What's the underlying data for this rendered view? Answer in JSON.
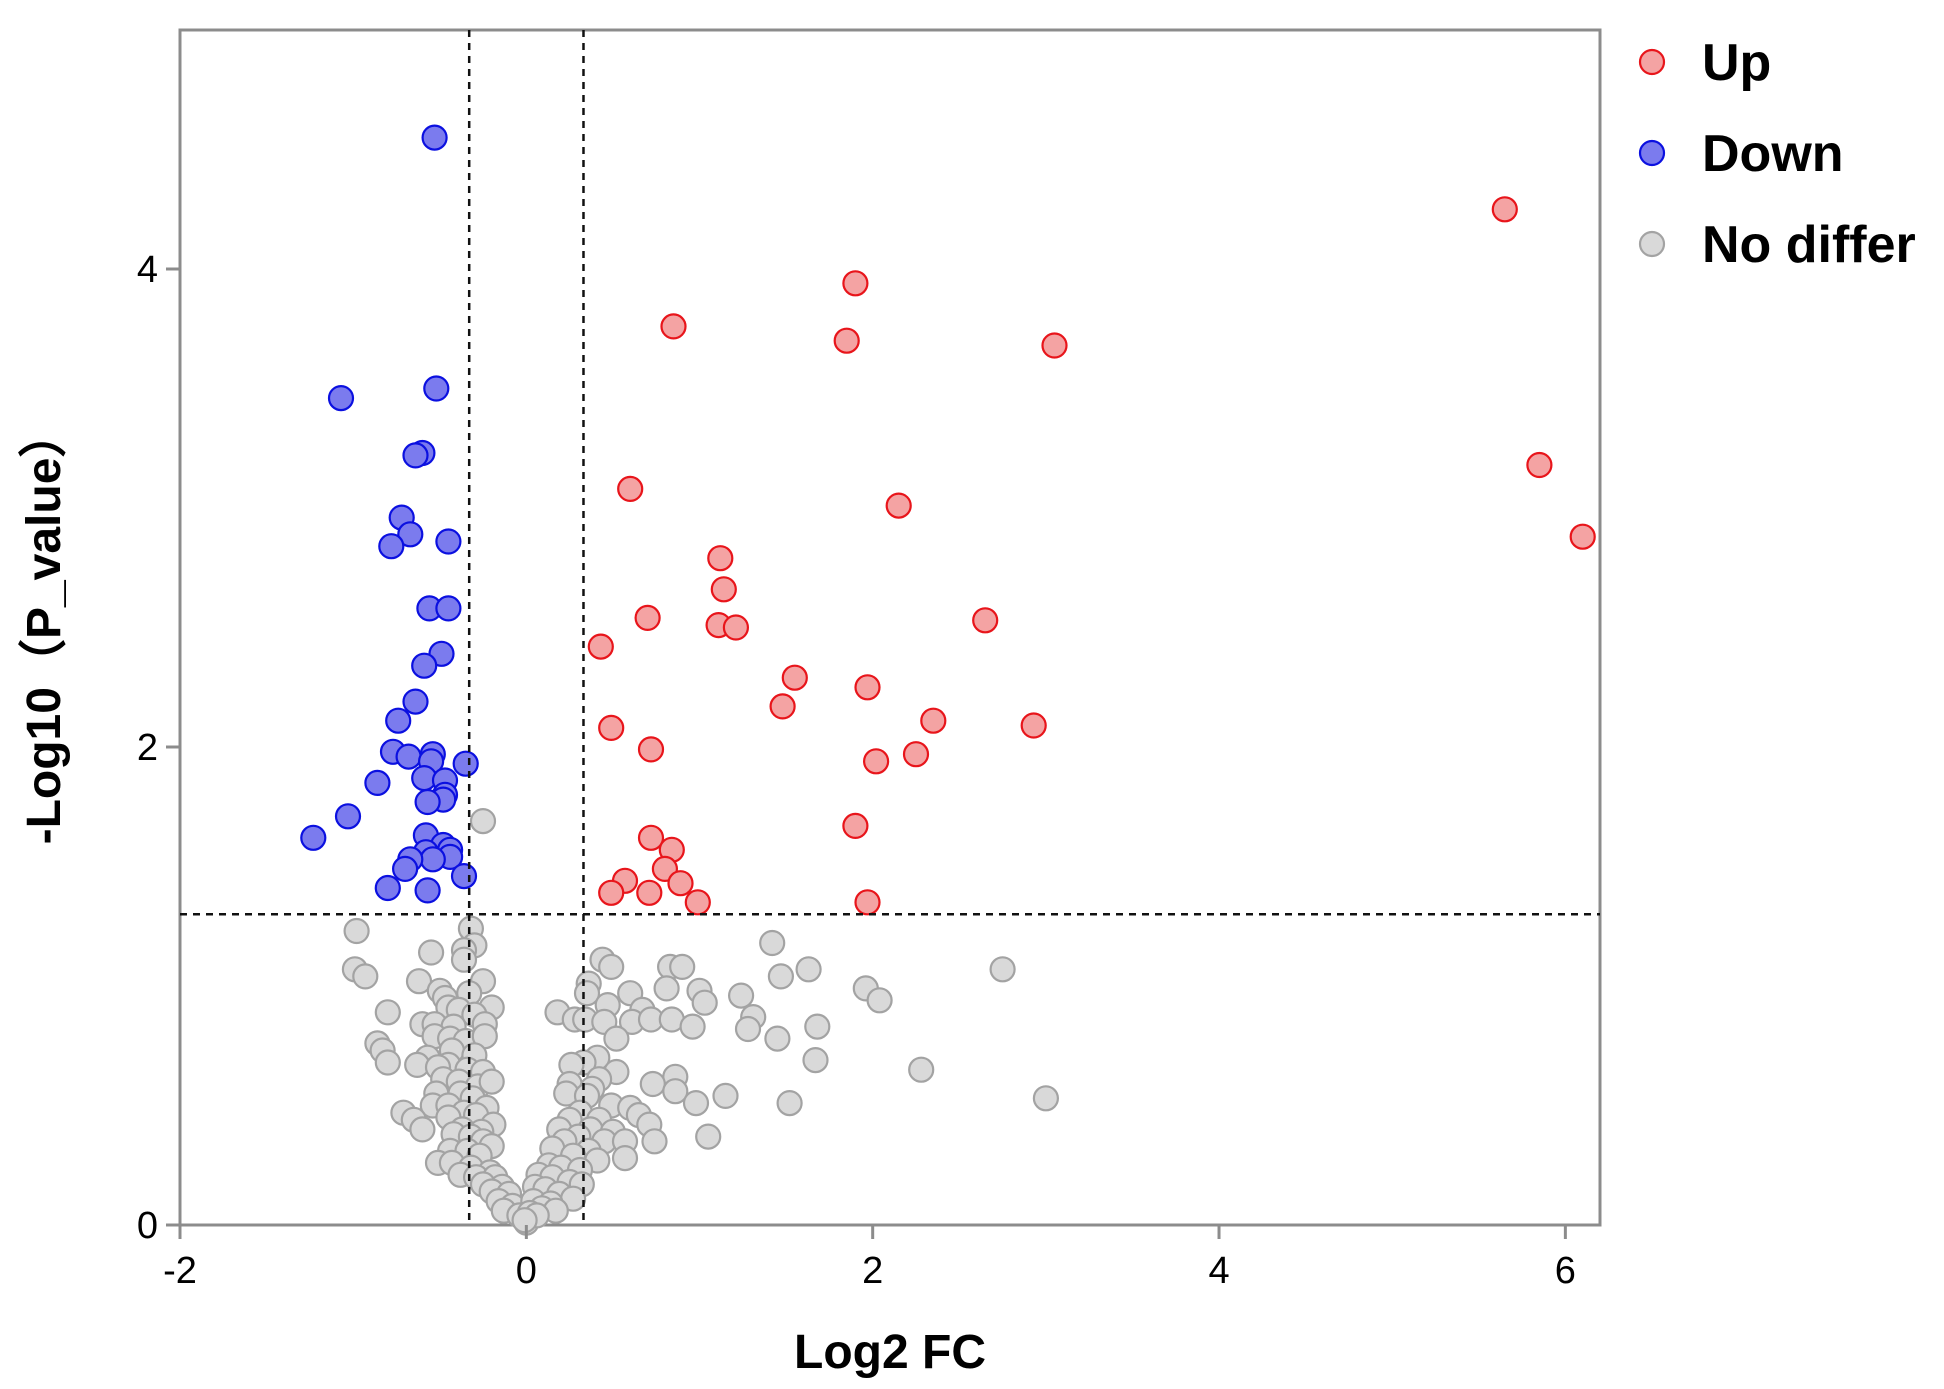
{
  "chart_data": {
    "type": "scatter",
    "xlabel": "Log2 FC",
    "ylabel": "-Log10（P_value）",
    "xlim": [
      -2,
      6.2
    ],
    "ylim": [
      0,
      5
    ],
    "xticks": [
      -2,
      0,
      2,
      4,
      6
    ],
    "xtick_labels": [
      "-2",
      "0",
      "2",
      "4",
      "6"
    ],
    "yticks": [
      0,
      2,
      4
    ],
    "ytick_labels": [
      "0",
      "2",
      "4"
    ],
    "thresholds": {
      "x": [
        -0.33,
        0.33
      ],
      "y": 1.3
    },
    "legend_position": "top-right, outside plot",
    "grid": false,
    "series": [
      {
        "name": "Up",
        "fill": "#f4a3a3",
        "stroke": "#e8151b",
        "points": [
          [
            5.65,
            4.25
          ],
          [
            1.9,
            3.94
          ],
          [
            0.85,
            3.76
          ],
          [
            1.85,
            3.7
          ],
          [
            3.05,
            3.68
          ],
          [
            5.85,
            3.18
          ],
          [
            6.1,
            2.88
          ],
          [
            0.6,
            3.08
          ],
          [
            2.15,
            3.01
          ],
          [
            1.12,
            2.79
          ],
          [
            1.14,
            2.66
          ],
          [
            0.7,
            2.54
          ],
          [
            2.65,
            2.53
          ],
          [
            1.11,
            2.51
          ],
          [
            1.21,
            2.5
          ],
          [
            0.43,
            2.42
          ],
          [
            1.55,
            2.29
          ],
          [
            1.97,
            2.25
          ],
          [
            1.48,
            2.17
          ],
          [
            2.35,
            2.11
          ],
          [
            2.93,
            2.09
          ],
          [
            0.49,
            2.08
          ],
          [
            0.72,
            1.99
          ],
          [
            2.02,
            1.94
          ],
          [
            2.25,
            1.97
          ],
          [
            1.9,
            1.67
          ],
          [
            0.72,
            1.62
          ],
          [
            0.84,
            1.57
          ],
          [
            0.8,
            1.49
          ],
          [
            0.89,
            1.43
          ],
          [
            0.57,
            1.44
          ],
          [
            0.49,
            1.39
          ],
          [
            0.71,
            1.39
          ],
          [
            0.99,
            1.35
          ],
          [
            1.97,
            1.35
          ]
        ]
      },
      {
        "name": "Down",
        "fill": "#7b7bee",
        "stroke": "#0b10e0",
        "points": [
          [
            -0.53,
            4.55
          ],
          [
            -1.07,
            3.46
          ],
          [
            -0.52,
            3.5
          ],
          [
            -0.6,
            3.23
          ],
          [
            -0.64,
            3.22
          ],
          [
            -0.72,
            2.96
          ],
          [
            -0.67,
            2.89
          ],
          [
            -0.78,
            2.84
          ],
          [
            -0.45,
            2.86
          ],
          [
            -0.56,
            2.58
          ],
          [
            -0.45,
            2.58
          ],
          [
            -0.49,
            2.39
          ],
          [
            -0.59,
            2.34
          ],
          [
            -0.64,
            2.19
          ],
          [
            -0.74,
            2.11
          ],
          [
            -0.77,
            1.98
          ],
          [
            -0.68,
            1.96
          ],
          [
            -0.54,
            1.97
          ],
          [
            -0.55,
            1.94
          ],
          [
            -0.35,
            1.93
          ],
          [
            -0.86,
            1.85
          ],
          [
            -0.59,
            1.87
          ],
          [
            -0.47,
            1.86
          ],
          [
            -0.47,
            1.8
          ],
          [
            -0.48,
            1.78
          ],
          [
            -0.57,
            1.77
          ],
          [
            -1.03,
            1.71
          ],
          [
            -1.23,
            1.62
          ],
          [
            -0.58,
            1.63
          ],
          [
            -0.48,
            1.59
          ],
          [
            -0.58,
            1.56
          ],
          [
            -0.44,
            1.57
          ],
          [
            -0.44,
            1.54
          ],
          [
            -0.54,
            1.53
          ],
          [
            -0.67,
            1.53
          ],
          [
            -0.7,
            1.49
          ],
          [
            -0.36,
            1.46
          ],
          [
            -0.8,
            1.41
          ],
          [
            -0.57,
            1.4
          ]
        ]
      },
      {
        "name": "No differ",
        "fill": "#d9d9d9",
        "stroke": "#a3a3a3",
        "points": [
          [
            -0.25,
            1.69
          ],
          [
            -0.98,
            1.23
          ],
          [
            -0.32,
            1.24
          ],
          [
            -0.3,
            1.17
          ],
          [
            -0.36,
            1.15
          ],
          [
            -0.55,
            1.14
          ],
          [
            -0.36,
            1.11
          ],
          [
            -0.99,
            1.07
          ],
          [
            -0.93,
            1.04
          ],
          [
            -0.25,
            1.02
          ],
          [
            -0.62,
            1.02
          ],
          [
            -0.5,
            0.98
          ],
          [
            -0.33,
            0.97
          ],
          [
            -0.47,
            0.95
          ],
          [
            -0.45,
            0.91
          ],
          [
            -0.39,
            0.9
          ],
          [
            -0.2,
            0.91
          ],
          [
            -0.3,
            0.88
          ],
          [
            -0.8,
            0.89
          ],
          [
            -0.6,
            0.84
          ],
          [
            -0.53,
            0.84
          ],
          [
            -0.42,
            0.83
          ],
          [
            -0.24,
            0.84
          ],
          [
            -0.53,
            0.79
          ],
          [
            -0.44,
            0.78
          ],
          [
            -0.35,
            0.77
          ],
          [
            -0.24,
            0.79
          ],
          [
            -0.86,
            0.76
          ],
          [
            -0.83,
            0.73
          ],
          [
            -0.43,
            0.73
          ],
          [
            -0.3,
            0.71
          ],
          [
            -0.57,
            0.7
          ],
          [
            -0.45,
            0.67
          ],
          [
            -0.8,
            0.68
          ],
          [
            -0.63,
            0.67
          ],
          [
            -0.51,
            0.66
          ],
          [
            -0.34,
            0.65
          ],
          [
            -0.25,
            0.64
          ],
          [
            -0.48,
            0.61
          ],
          [
            -0.39,
            0.6
          ],
          [
            -0.28,
            0.58
          ],
          [
            -0.2,
            0.6
          ],
          [
            -0.52,
            0.55
          ],
          [
            -0.38,
            0.55
          ],
          [
            -0.31,
            0.53
          ],
          [
            -0.54,
            0.5
          ],
          [
            -0.45,
            0.5
          ],
          [
            -0.23,
            0.49
          ],
          [
            -0.71,
            0.47
          ],
          [
            -0.36,
            0.47
          ],
          [
            -0.29,
            0.46
          ],
          [
            -0.45,
            0.45
          ],
          [
            -0.65,
            0.44
          ],
          [
            -0.19,
            0.42
          ],
          [
            -0.6,
            0.4
          ],
          [
            -0.37,
            0.4
          ],
          [
            -0.26,
            0.39
          ],
          [
            -0.42,
            0.38
          ],
          [
            -0.32,
            0.37
          ],
          [
            -0.25,
            0.35
          ],
          [
            -0.2,
            0.33
          ],
          [
            -0.44,
            0.31
          ],
          [
            -0.34,
            0.31
          ],
          [
            -0.27,
            0.29
          ],
          [
            -0.51,
            0.26
          ],
          [
            -0.43,
            0.26
          ],
          [
            -0.32,
            0.24
          ],
          [
            -0.21,
            0.22
          ],
          [
            -0.38,
            0.21
          ],
          [
            -0.29,
            0.2
          ],
          [
            -0.18,
            0.2
          ],
          [
            -0.25,
            0.17
          ],
          [
            -0.14,
            0.16
          ],
          [
            -0.2,
            0.14
          ],
          [
            -0.1,
            0.13
          ],
          [
            -0.16,
            0.1
          ],
          [
            -0.08,
            0.08
          ],
          [
            -0.13,
            0.06
          ],
          [
            -0.04,
            0.04
          ],
          [
            0.0,
            0.01
          ],
          [
            1.42,
            1.18
          ],
          [
            0.44,
            1.11
          ],
          [
            0.49,
            1.08
          ],
          [
            0.83,
            1.08
          ],
          [
            0.9,
            1.08
          ],
          [
            1.63,
            1.07
          ],
          [
            2.75,
            1.07
          ],
          [
            1.47,
            1.04
          ],
          [
            0.36,
            1.01
          ],
          [
            0.81,
            0.99
          ],
          [
            1.96,
            0.99
          ],
          [
            0.35,
            0.97
          ],
          [
            0.6,
            0.97
          ],
          [
            1.0,
            0.98
          ],
          [
            1.24,
            0.96
          ],
          [
            2.04,
            0.94
          ],
          [
            1.03,
            0.93
          ],
          [
            0.47,
            0.92
          ],
          [
            0.67,
            0.9
          ],
          [
            1.31,
            0.87
          ],
          [
            0.18,
            0.89
          ],
          [
            0.28,
            0.86
          ],
          [
            0.34,
            0.86
          ],
          [
            0.45,
            0.85
          ],
          [
            0.61,
            0.85
          ],
          [
            0.72,
            0.86
          ],
          [
            0.84,
            0.86
          ],
          [
            1.68,
            0.83
          ],
          [
            0.96,
            0.83
          ],
          [
            1.28,
            0.82
          ],
          [
            0.52,
            0.78
          ],
          [
            1.45,
            0.78
          ],
          [
            0.41,
            0.7
          ],
          [
            0.33,
            0.68
          ],
          [
            0.26,
            0.67
          ],
          [
            0.52,
            0.64
          ],
          [
            1.67,
            0.69
          ],
          [
            0.86,
            0.62
          ],
          [
            2.28,
            0.65
          ],
          [
            0.42,
            0.61
          ],
          [
            0.25,
            0.59
          ],
          [
            0.38,
            0.57
          ],
          [
            0.73,
            0.59
          ],
          [
            0.23,
            0.55
          ],
          [
            0.35,
            0.54
          ],
          [
            0.86,
            0.56
          ],
          [
            1.15,
            0.54
          ],
          [
            0.98,
            0.51
          ],
          [
            0.49,
            0.5
          ],
          [
            3.0,
            0.53
          ],
          [
            1.52,
            0.51
          ],
          [
            0.6,
            0.49
          ],
          [
            0.31,
            0.47
          ],
          [
            0.65,
            0.46
          ],
          [
            0.25,
            0.44
          ],
          [
            0.42,
            0.44
          ],
          [
            0.71,
            0.42
          ],
          [
            0.19,
            0.4
          ],
          [
            0.37,
            0.4
          ],
          [
            0.5,
            0.39
          ],
          [
            0.3,
            0.37
          ],
          [
            1.05,
            0.37
          ],
          [
            0.22,
            0.35
          ],
          [
            0.45,
            0.35
          ],
          [
            0.57,
            0.35
          ],
          [
            0.74,
            0.35
          ],
          [
            0.15,
            0.32
          ],
          [
            0.36,
            0.31
          ],
          [
            0.27,
            0.29
          ],
          [
            0.57,
            0.28
          ],
          [
            0.41,
            0.27
          ],
          [
            0.13,
            0.25
          ],
          [
            0.2,
            0.24
          ],
          [
            0.31,
            0.23
          ],
          [
            0.07,
            0.21
          ],
          [
            0.15,
            0.2
          ],
          [
            0.25,
            0.18
          ],
          [
            0.32,
            0.17
          ],
          [
            0.05,
            0.16
          ],
          [
            0.11,
            0.15
          ],
          [
            0.19,
            0.13
          ],
          [
            0.27,
            0.11
          ],
          [
            0.04,
            0.1
          ],
          [
            0.14,
            0.09
          ],
          [
            0.09,
            0.07
          ],
          [
            0.17,
            0.06
          ],
          [
            0.02,
            0.05
          ],
          [
            0.06,
            0.04
          ],
          [
            -0.01,
            0.02
          ]
        ]
      }
    ]
  }
}
